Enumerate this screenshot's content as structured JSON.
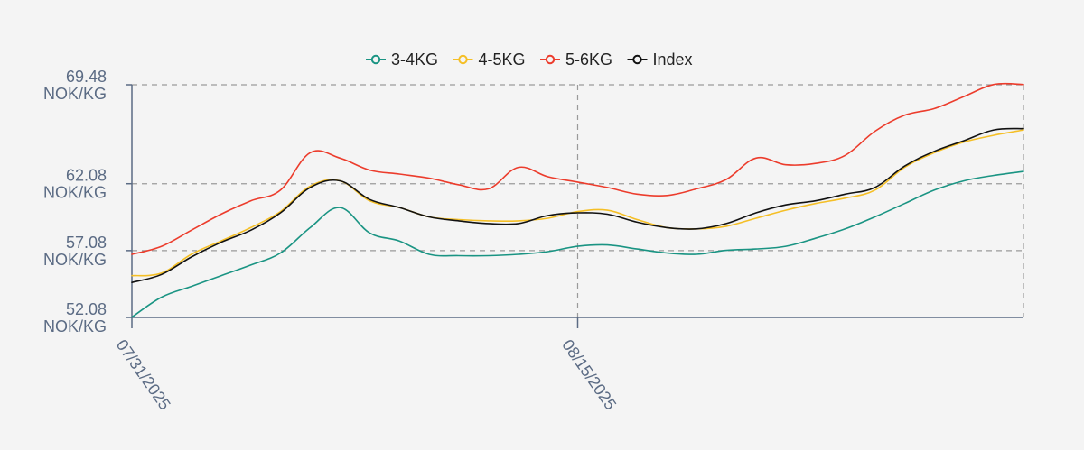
{
  "chart_data": {
    "type": "line",
    "title": "",
    "xlabel": "",
    "ylabel": "",
    "ylim": [
      52.08,
      69.48
    ],
    "y_ticks": [
      52.08,
      57.08,
      62.08,
      69.48
    ],
    "y_tick_labels": [
      {
        "value": "52.08",
        "unit": "NOK/KG"
      },
      {
        "value": "57.08",
        "unit": "NOK/KG"
      },
      {
        "value": "62.08",
        "unit": "NOK/KG"
      },
      {
        "value": "69.48",
        "unit": "NOK/KG"
      }
    ],
    "x_start": "07/31/2025",
    "x_end": "08/30/2025",
    "x_ticks": [
      "07/31/2025",
      "08/15/2025"
    ],
    "grid": true,
    "legend_position": "top-center",
    "x": [
      "07/31/2025",
      "08/01/2025",
      "08/02/2025",
      "08/03/2025",
      "08/04/2025",
      "08/05/2025",
      "08/06/2025",
      "08/07/2025",
      "08/08/2025",
      "08/09/2025",
      "08/10/2025",
      "08/11/2025",
      "08/12/2025",
      "08/13/2025",
      "08/14/2025",
      "08/15/2025",
      "08/16/2025",
      "08/17/2025",
      "08/18/2025",
      "08/19/2025",
      "08/20/2025",
      "08/21/2025",
      "08/22/2025",
      "08/23/2025",
      "08/24/2025",
      "08/25/2025",
      "08/26/2025",
      "08/27/2025",
      "08/28/2025",
      "08/29/2025",
      "08/30/2025"
    ],
    "series": [
      {
        "name": "3-4KG",
        "color": "#1a9483",
        "values": [
          52.1,
          53.6,
          54.4,
          55.2,
          56.0,
          56.9,
          58.8,
          60.3,
          58.4,
          57.8,
          56.8,
          56.7,
          56.7,
          56.8,
          57.0,
          57.4,
          57.5,
          57.2,
          56.9,
          56.8,
          57.1,
          57.2,
          57.4,
          58.0,
          58.7,
          59.6,
          60.6,
          61.6,
          62.3,
          62.7,
          63.0
        ]
      },
      {
        "name": "4-5KG",
        "color": "#f5bf26",
        "values": [
          55.2,
          55.4,
          56.8,
          57.8,
          58.8,
          60.0,
          61.9,
          62.3,
          60.8,
          60.3,
          59.6,
          59.4,
          59.3,
          59.3,
          59.5,
          60.0,
          60.1,
          59.4,
          58.8,
          58.7,
          58.9,
          59.5,
          60.1,
          60.6,
          61.0,
          61.6,
          63.3,
          64.4,
          65.2,
          65.7,
          66.1
        ]
      },
      {
        "name": "5-6KG",
        "color": "#ec3c2c",
        "values": [
          56.8,
          57.4,
          58.6,
          59.8,
          60.8,
          61.6,
          64.4,
          64.0,
          63.1,
          62.8,
          62.5,
          62.0,
          61.7,
          63.3,
          62.6,
          62.2,
          61.8,
          61.3,
          61.2,
          61.7,
          62.4,
          64.0,
          63.5,
          63.6,
          64.2,
          66.0,
          67.2,
          67.7,
          68.6,
          69.5,
          69.5
        ]
      },
      {
        "name": "Index",
        "color": "#111111",
        "values": [
          54.7,
          55.3,
          56.6,
          57.7,
          58.6,
          59.9,
          61.8,
          62.3,
          60.9,
          60.3,
          59.6,
          59.3,
          59.1,
          59.1,
          59.7,
          59.9,
          59.8,
          59.2,
          58.8,
          58.7,
          59.1,
          59.9,
          60.5,
          60.8,
          61.3,
          61.8,
          63.4,
          64.5,
          65.3,
          66.1,
          66.2
        ]
      }
    ]
  }
}
